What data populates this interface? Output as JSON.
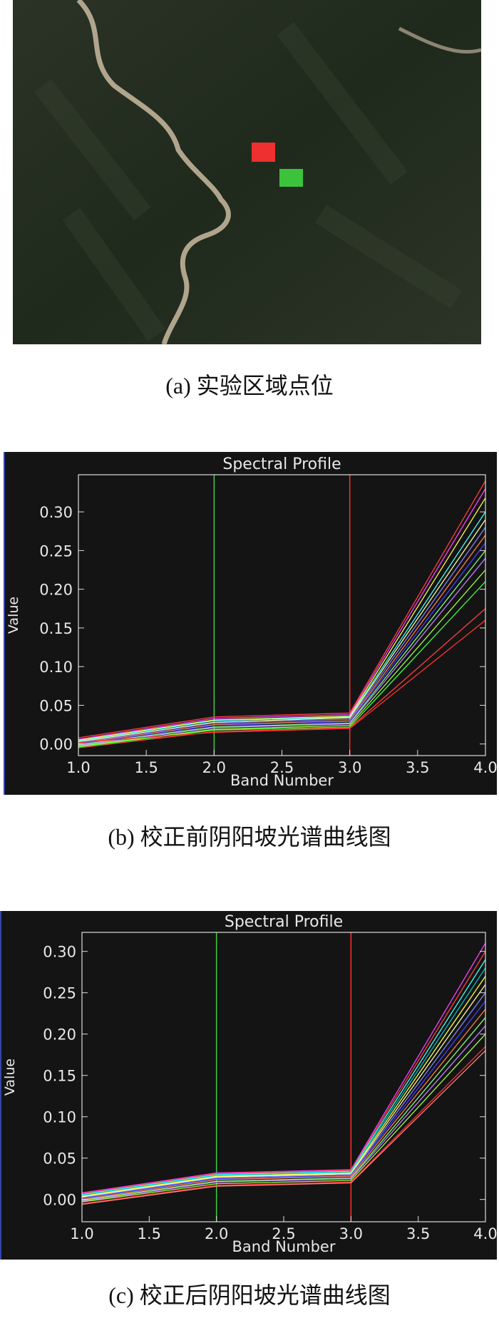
{
  "figure": {
    "captions": [
      "(a) 实验区域点位",
      "(b) 校正前阴阳坡光谱曲线图",
      "(c) 校正后阴阳坡光谱曲线图"
    ]
  },
  "chart_data": [
    {
      "type": "line",
      "title": "Spectral Profile",
      "x_label": "Band Number",
      "y_label": "Value",
      "x": [
        1,
        2,
        3,
        4
      ],
      "xlim": [
        1,
        4
      ],
      "ylim": [
        -0.015,
        0.348
      ],
      "xticks": [
        {
          "value": 1,
          "label": "1.0"
        },
        {
          "value": 1.5,
          "label": "1.5"
        },
        {
          "value": 2,
          "label": "2.0"
        },
        {
          "value": 2.5,
          "label": "2.5"
        },
        {
          "value": 3,
          "label": "3.0"
        },
        {
          "value": 3.5,
          "label": "3.5"
        },
        {
          "value": 4,
          "label": "4.0"
        }
      ],
      "yticks": [
        {
          "value": 0,
          "label": "0.00"
        },
        {
          "value": 0.05,
          "label": "0.05"
        },
        {
          "value": 0.1,
          "label": "0.10"
        },
        {
          "value": 0.15,
          "label": "0.15"
        },
        {
          "value": 0.2,
          "label": "0.20"
        },
        {
          "value": 0.25,
          "label": "0.25"
        },
        {
          "value": 0.3,
          "label": "0.30"
        }
      ],
      "markers": [
        {
          "x": 2,
          "color": "#3ccf3c"
        },
        {
          "x": 3,
          "color": "#ff3030"
        }
      ],
      "series": [
        {
          "color": "#ff4040",
          "values": [
            0.008,
            0.035,
            0.04,
            0.34
          ]
        },
        {
          "color": "#ff40ff",
          "values": [
            0.006,
            0.033,
            0.038,
            0.33
          ]
        },
        {
          "color": "#ffff40",
          "values": [
            0.005,
            0.031,
            0.036,
            0.318
          ]
        },
        {
          "color": "#40ffff",
          "values": [
            0.004,
            0.03,
            0.035,
            0.3
          ]
        },
        {
          "color": "#ffffa0",
          "values": [
            0.003,
            0.028,
            0.034,
            0.29
          ]
        },
        {
          "color": "#8080ff",
          "values": [
            0.002,
            0.027,
            0.032,
            0.28
          ]
        },
        {
          "color": "#ff8040",
          "values": [
            0.001,
            0.025,
            0.03,
            0.27
          ]
        },
        {
          "color": "#4040ff",
          "values": [
            0.0,
            0.024,
            0.029,
            0.26
          ]
        },
        {
          "color": "#80ff80",
          "values": [
            -0.001,
            0.022,
            0.027,
            0.25
          ]
        },
        {
          "color": "#c080ff",
          "values": [
            -0.002,
            0.021,
            0.026,
            0.24
          ]
        },
        {
          "color": "#a0ff40",
          "values": [
            -0.003,
            0.019,
            0.024,
            0.225
          ]
        },
        {
          "color": "#40ff40",
          "values": [
            -0.004,
            0.018,
            0.022,
            0.21
          ]
        },
        {
          "color": "#ff4040",
          "values": [
            -0.005,
            0.016,
            0.021,
            0.175
          ]
        },
        {
          "color": "#ff3030",
          "values": [
            0.002,
            0.015,
            0.02,
            0.16
          ]
        }
      ]
    },
    {
      "type": "line",
      "title": "Spectral Profile",
      "x_label": "Band Number",
      "y_label": "Value",
      "x": [
        1,
        2,
        3,
        4
      ],
      "xlim": [
        1,
        4
      ],
      "ylim": [
        -0.027,
        0.323
      ],
      "xticks": [
        {
          "value": 1,
          "label": "1.0"
        },
        {
          "value": 1.5,
          "label": "1.5"
        },
        {
          "value": 2,
          "label": "2.0"
        },
        {
          "value": 2.5,
          "label": "2.5"
        },
        {
          "value": 3,
          "label": "3.0"
        },
        {
          "value": 3.5,
          "label": "3.5"
        },
        {
          "value": 4,
          "label": "4.0"
        }
      ],
      "yticks": [
        {
          "value": 0,
          "label": "0.00"
        },
        {
          "value": 0.05,
          "label": "0.05"
        },
        {
          "value": 0.1,
          "label": "0.10"
        },
        {
          "value": 0.15,
          "label": "0.15"
        },
        {
          "value": 0.2,
          "label": "0.20"
        },
        {
          "value": 0.25,
          "label": "0.25"
        },
        {
          "value": 0.3,
          "label": "0.30"
        }
      ],
      "markers": [
        {
          "x": 2,
          "color": "#3ccf3c"
        },
        {
          "x": 3,
          "color": "#ff3030"
        }
      ],
      "series": [
        {
          "color": "#ff40ff",
          "values": [
            0.008,
            0.032,
            0.036,
            0.31
          ]
        },
        {
          "color": "#ff4040",
          "values": [
            0.007,
            0.031,
            0.035,
            0.3
          ]
        },
        {
          "color": "#40ffff",
          "values": [
            0.006,
            0.03,
            0.034,
            0.29
          ]
        },
        {
          "color": "#00c0c0",
          "values": [
            0.005,
            0.029,
            0.033,
            0.28
          ]
        },
        {
          "color": "#ffff40",
          "values": [
            0.004,
            0.028,
            0.032,
            0.27
          ]
        },
        {
          "color": "#ffffa0",
          "values": [
            0.003,
            0.027,
            0.031,
            0.26
          ]
        },
        {
          "color": "#8080ff",
          "values": [
            0.002,
            0.026,
            0.03,
            0.25
          ]
        },
        {
          "color": "#4040ff",
          "values": [
            0.001,
            0.025,
            0.029,
            0.24
          ]
        },
        {
          "color": "#ff8040",
          "values": [
            0.0,
            0.024,
            0.028,
            0.23
          ]
        },
        {
          "color": "#80ff80",
          "values": [
            -0.001,
            0.022,
            0.026,
            0.22
          ]
        },
        {
          "color": "#c080ff",
          "values": [
            -0.002,
            0.021,
            0.025,
            0.21
          ]
        },
        {
          "color": "#a0ff40",
          "values": [
            -0.003,
            0.019,
            0.023,
            0.2
          ]
        },
        {
          "color": "#ff3030",
          "values": [
            -0.005,
            0.017,
            0.021,
            0.185
          ]
        },
        {
          "color": "#ff8080",
          "values": [
            -0.006,
            0.016,
            0.02,
            0.18
          ]
        }
      ]
    }
  ]
}
